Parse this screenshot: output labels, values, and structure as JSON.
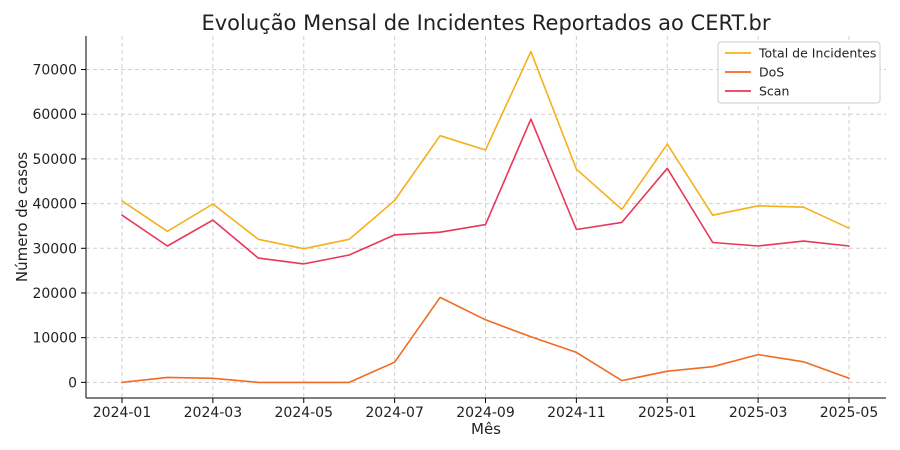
{
  "chart_data": {
    "type": "line",
    "title": "Evolução Mensal de Incidentes Reportados ao CERT.br",
    "xlabel": "Mês",
    "ylabel": "Número de casos",
    "x": [
      "2024-01",
      "2024-02",
      "2024-03",
      "2024-04",
      "2024-05",
      "2024-06",
      "2024-07",
      "2024-08",
      "2024-09",
      "2024-10",
      "2024-11",
      "2024-12",
      "2025-01",
      "2025-02",
      "2025-03",
      "2025-04",
      "2025-05"
    ],
    "x_ticks": [
      "2024-01",
      "2024-03",
      "2024-05",
      "2024-07",
      "2024-09",
      "2024-11",
      "2025-01",
      "2025-03",
      "2025-05"
    ],
    "y_ticks": [
      0,
      10000,
      20000,
      30000,
      40000,
      50000,
      60000,
      70000
    ],
    "ylim": [
      -3500,
      77500
    ],
    "grid": true,
    "legend_position": "top-right",
    "series": [
      {
        "name": "Total de Incidentes",
        "color": "#f5b01c",
        "values": [
          40600,
          33800,
          39900,
          32000,
          29900,
          32000,
          40700,
          55200,
          52000,
          74000,
          47700,
          38700,
          53300,
          37400,
          39500,
          39200,
          34500
        ]
      },
      {
        "name": "DoS",
        "color": "#f06b24",
        "values": [
          0,
          1100,
          900,
          0,
          0,
          0,
          4500,
          19000,
          14000,
          10200,
          6700,
          400,
          2500,
          3500,
          6200,
          4600,
          900
        ]
      },
      {
        "name": "Scan",
        "color": "#e8375a",
        "values": [
          37400,
          30500,
          36300,
          27800,
          26500,
          28500,
          33000,
          33600,
          35300,
          58900,
          34200,
          35800,
          47900,
          31300,
          30500,
          31600,
          30500
        ]
      }
    ]
  }
}
